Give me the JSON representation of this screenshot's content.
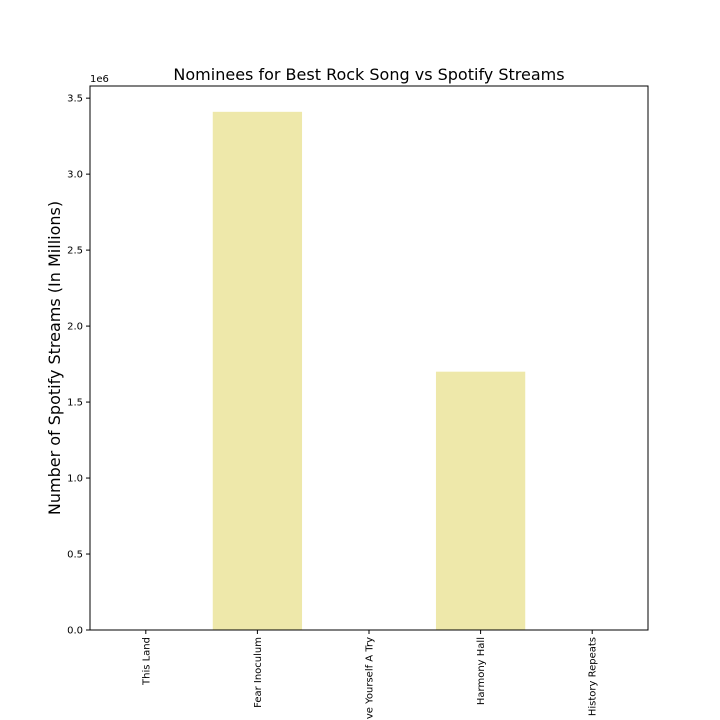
{
  "chart_data": {
    "type": "bar",
    "title": "Nominees for Best Rock Song vs Spotify Streams",
    "xlabel": "",
    "ylabel": "Number of Spotify Streams (In Millions)",
    "categories": [
      "This Land",
      "Fear Inoculum",
      "Give Yourself A Try",
      "Harmony Hall",
      "History Repeats"
    ],
    "values": [
      0,
      3410000,
      0,
      1700000,
      0
    ],
    "ylim": [
      0,
      3580000
    ],
    "yticks": [
      0,
      500000,
      1000000,
      1500000,
      2000000,
      2500000,
      3000000,
      3500000
    ],
    "ytick_labels": [
      "0.0",
      "0.5",
      "1.0",
      "1.5",
      "2.0",
      "2.5",
      "3.0",
      "3.5"
    ],
    "offset_label": "1e6",
    "bar_color": "#EEE8AA",
    "grid": false,
    "legend": "none"
  }
}
